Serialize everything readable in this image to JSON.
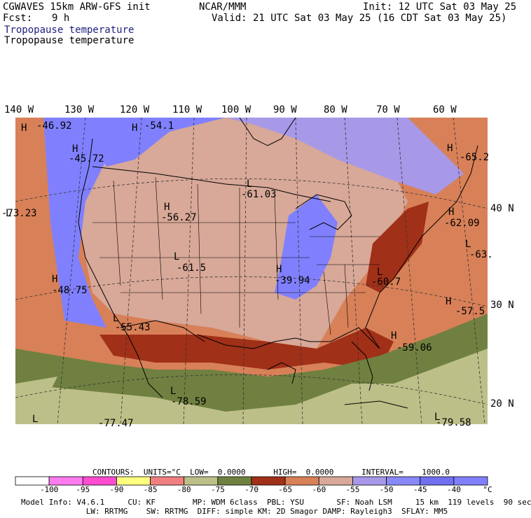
{
  "header": {
    "model_title": "CGWAVES 15km ARW-GFS init",
    "forecast_label": "Fcst:",
    "forecast_value": "9 h",
    "org": "NCAR/MMM",
    "init_time": "Init: 12 UTC Sat 03 May 25",
    "valid_time": "Valid: 21 UTC Sat 03 May 25 (16 CDT Sat 03 May 25)",
    "field_title_blue": "Tropopause temperature",
    "field_title_black": "Tropopause temperature"
  },
  "longitude_labels": [
    "140 W",
    "130 W",
    "120 W",
    "110 W",
    "100 W",
    "90 W",
    "80 W",
    "70 W",
    "60 W"
  ],
  "latitude_labels": [
    "40 N",
    "30 N",
    "20 N"
  ],
  "map_annotations": [
    {
      "type": "H",
      "value": "-46.92"
    },
    {
      "type": "H",
      "value": "-54.1"
    },
    {
      "type": "H",
      "value": "-45.72"
    },
    {
      "type": "H",
      "value": "-65.2"
    },
    {
      "type": "L",
      "value": "-61.03"
    },
    {
      "type": "H",
      "value": "-56.27"
    },
    {
      "type": "H",
      "value": "-62.09"
    },
    {
      "type": "L",
      "value": "-63."
    },
    {
      "type": "L",
      "value": "-61.5"
    },
    {
      "type": "L",
      "value": "-60.7"
    },
    {
      "type": "H",
      "value": "-39.94"
    },
    {
      "type": "H",
      "value": "-48.75"
    },
    {
      "type": "H",
      "value": "-57.5"
    },
    {
      "type": "L",
      "value": "-55.43"
    },
    {
      "type": "H",
      "value": "-59.06"
    },
    {
      "type": "L",
      "value": "-78.59"
    },
    {
      "type": "L",
      "value": "-77.47"
    },
    {
      "type": "L",
      "value": "-79.58"
    },
    {
      "type": "L",
      "value": "-73.23"
    }
  ],
  "contour_info": "CONTOURS:  UNITS=°C  LOW=  0.0000      HIGH=  0.0000      INTERVAL=    1000.0",
  "colorbar": {
    "colors": [
      "#ffffff",
      "#ff7cf0",
      "#ff4cd0",
      "#ffff80",
      "#f08080",
      "#bcc088",
      "#708040",
      "#a03018",
      "#d88058",
      "#d8a898",
      "#a898e8",
      "#8888f8",
      "#7070f0",
      "#8080ff"
    ],
    "labels": [
      "-100",
      "-95",
      "-90",
      "-85",
      "-80",
      "-75",
      "-70",
      "-65",
      "-60",
      "-55",
      "-50",
      "-45",
      "-40",
      "°C"
    ]
  },
  "footer": {
    "line1": "Model Info: V4.6.1     CU: KF        MP: WDM 6class  PBL: YSU       SF: Noah LSM     15 km  119 levels  90 sec",
    "line2": "              LW: RRTMG    SW: RRTMG  DIFF: simple KM: 2D Smagor DAMP: Rayleigh3  SFLAY: MM5"
  }
}
